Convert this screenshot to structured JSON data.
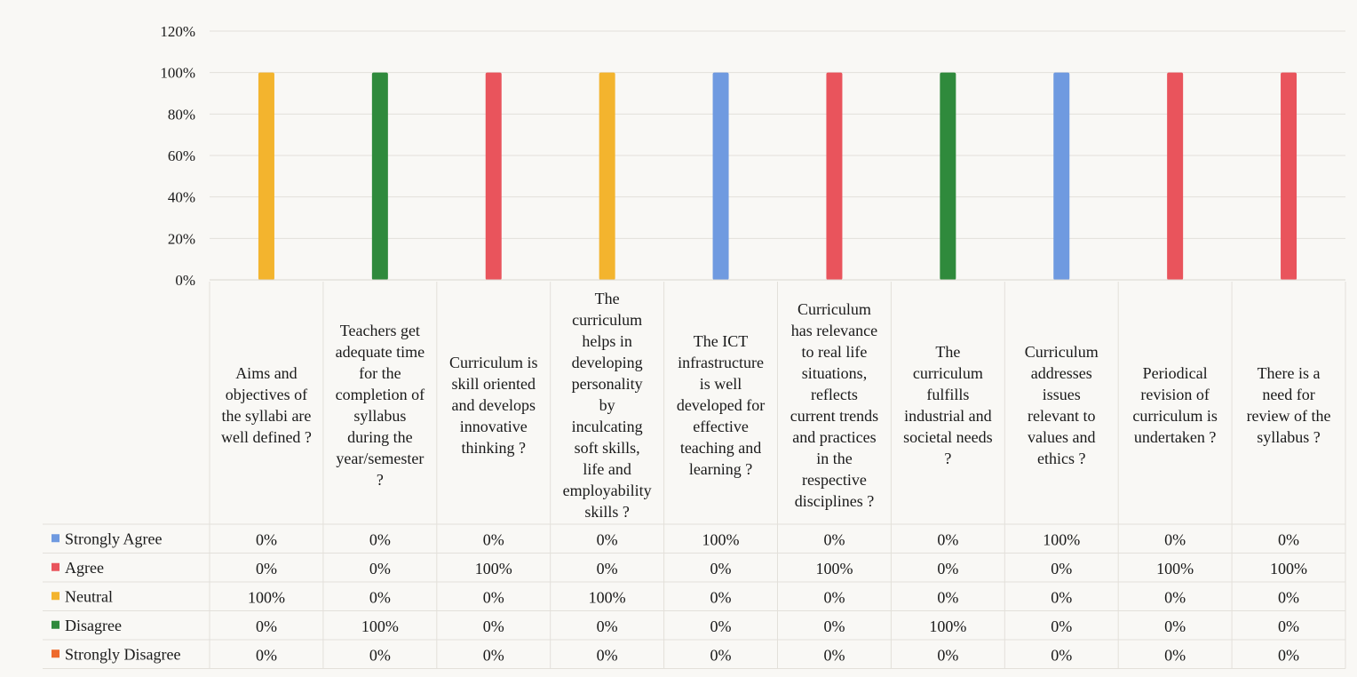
{
  "chart_data": {
    "type": "bar",
    "title": "",
    "xlabel": "",
    "ylabel": "",
    "ylim": [
      0,
      1.2
    ],
    "y_ticks": [
      "0%",
      "20%",
      "40%",
      "60%",
      "80%",
      "100%",
      "120%"
    ],
    "grid": true,
    "legend": "data-table",
    "categories": [
      "Aims and objectives of the syllabi are well defined ?",
      "Teachers get adequate time for the completion of syllabus during the year/semester ?",
      "Curriculum is skill oriented and develops innovative thinking ?",
      "The curriculum helps in developing personality by inculcating soft skills, life and employability skills ?",
      "The ICT infrastructure is well developed for effective teaching and learning ?",
      "Curriculum has relevance to real life situations, reflects current trends and practices in the respective disciplines ?",
      "The curriculum fulfills industrial and societal needs ?",
      "Curriculum addresses issues relevant to values and ethics ?",
      "Periodical revision of curriculum is undertaken ?",
      "There is a need for review of the syllabus ?"
    ],
    "category_lines": [
      [
        "Aims and",
        "objectives of",
        "the syllabi are",
        "well defined ?"
      ],
      [
        "Teachers get",
        "adequate time",
        "for the",
        "completion of",
        "syllabus",
        "during the",
        "year/semester",
        "?"
      ],
      [
        "Curriculum is",
        "skill oriented",
        "and develops",
        "innovative",
        "thinking ?"
      ],
      [
        "The",
        "curriculum",
        "helps in",
        "developing",
        "personality",
        "by",
        "inculcating",
        "soft skills,",
        "life and",
        "employability",
        "skills ?"
      ],
      [
        "The ICT",
        "infrastructure",
        "is well",
        "developed for",
        "effective",
        "teaching and",
        "learning ?"
      ],
      [
        "Curriculum",
        "has relevance",
        "to real life",
        "situations,",
        "reflects",
        "current trends",
        "and practices",
        "in the",
        "respective",
        "disciplines ?"
      ],
      [
        "The",
        "curriculum",
        "fulfills",
        "industrial and",
        "societal needs",
        "?"
      ],
      [
        "Curriculum",
        "addresses",
        "issues",
        "relevant to",
        "values and",
        "ethics ?"
      ],
      [
        "Periodical",
        "revision of",
        "curriculum is",
        "undertaken ?"
      ],
      [
        "There is a",
        "need for",
        "review of the",
        "syllabus ?"
      ]
    ],
    "series": [
      {
        "name": "Strongly Agree",
        "color": "#6f9ae0",
        "values": [
          0,
          0,
          0,
          0,
          1,
          0,
          0,
          1,
          0,
          0
        ],
        "labels": [
          "0%",
          "0%",
          "0%",
          "0%",
          "100%",
          "0%",
          "0%",
          "100%",
          "0%",
          "0%"
        ]
      },
      {
        "name": "Agree",
        "color": "#e9545c",
        "values": [
          0,
          0,
          1,
          0,
          0,
          1,
          0,
          0,
          1,
          1
        ],
        "labels": [
          "0%",
          "0%",
          "100%",
          "0%",
          "0%",
          "100%",
          "0%",
          "0%",
          "100%",
          "100%"
        ]
      },
      {
        "name": "Neutral",
        "color": "#f3b42e",
        "values": [
          1,
          0,
          0,
          1,
          0,
          0,
          0,
          0,
          0,
          0
        ],
        "labels": [
          "100%",
          "0%",
          "0%",
          "100%",
          "0%",
          "0%",
          "0%",
          "0%",
          "0%",
          "0%"
        ]
      },
      {
        "name": "Disagree",
        "color": "#2f8a3c",
        "values": [
          0,
          1,
          0,
          0,
          0,
          0,
          1,
          0,
          0,
          0
        ],
        "labels": [
          "0%",
          "100%",
          "0%",
          "0%",
          "0%",
          "0%",
          "100%",
          "0%",
          "0%",
          "0%"
        ]
      },
      {
        "name": "Strongly Disagree",
        "color": "#ee6a2c",
        "values": [
          0,
          0,
          0,
          0,
          0,
          0,
          0,
          0,
          0,
          0
        ],
        "labels": [
          "0%",
          "0%",
          "0%",
          "0%",
          "0%",
          "0%",
          "0%",
          "0%",
          "0%",
          "0%"
        ]
      }
    ]
  }
}
